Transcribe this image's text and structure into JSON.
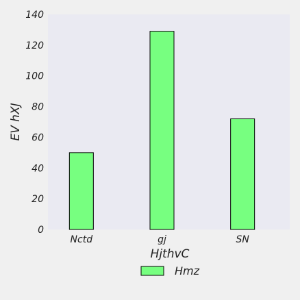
{
  "chart_data": {
    "type": "bar",
    "categories": [
      "Nctd",
      "gj",
      "SN"
    ],
    "series": [
      {
        "name": "Hmz",
        "values": [
          50,
          129,
          72
        ]
      }
    ],
    "xlabel": "HjthvC",
    "ylabel": "EV  hXJ",
    "ylim": [
      0,
      140
    ],
    "yticks": [
      0,
      20,
      40,
      60,
      80,
      100,
      120,
      140
    ],
    "grid": false,
    "legend_position": "bottom-center",
    "colors": {
      "background": "#f0f0f0",
      "plot_area": "#eaeaf2",
      "bar_fill": "#77ff80",
      "bar_edge": "#000000"
    }
  }
}
